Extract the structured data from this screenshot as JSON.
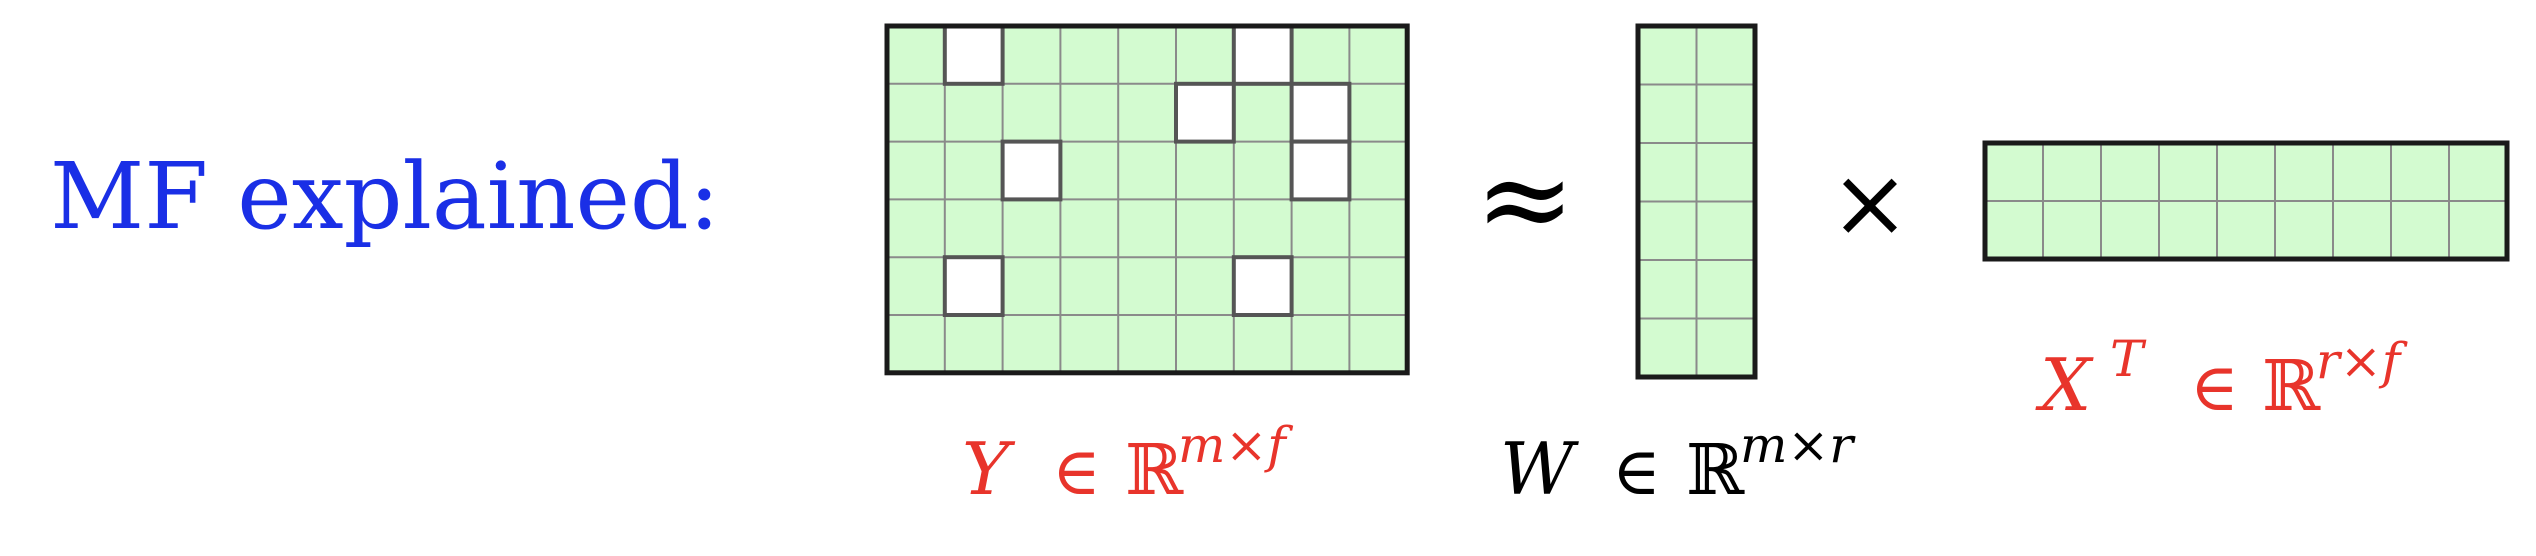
{
  "title": "MF explained:",
  "symbols": {
    "approx": "≈",
    "times": "×"
  },
  "labels": {
    "y": {
      "var": "Y",
      "in": "∈",
      "set": "ℝ",
      "dims": "m×f",
      "color": "#e8342b"
    },
    "w": {
      "var": "W",
      "in": "∈",
      "set": "ℝ",
      "dims": "m×r",
      "color": "#000000"
    },
    "x": {
      "var": "X",
      "sup": "T",
      "in": "∈",
      "set": "ℝ",
      "dims": "r×f",
      "color": "#e8342b"
    }
  },
  "colors": {
    "title": "#1a2fe6",
    "cell_fill": "#d3fbd0",
    "grid_line": "#8a8a8a",
    "border": "#1a1a1a",
    "missing_fill": "#ffffff",
    "missing_border": "#555555"
  },
  "matrices": {
    "y": {
      "rows": 6,
      "cols": 9,
      "missing": [
        [
          0,
          1
        ],
        [
          0,
          6
        ],
        [
          1,
          5
        ],
        [
          1,
          7
        ],
        [
          2,
          2
        ],
        [
          2,
          7
        ],
        [
          4,
          1
        ],
        [
          4,
          6
        ]
      ]
    },
    "w": {
      "rows": 6,
      "cols": 2,
      "missing": []
    },
    "x": {
      "rows": 2,
      "cols": 9,
      "missing": []
    }
  }
}
